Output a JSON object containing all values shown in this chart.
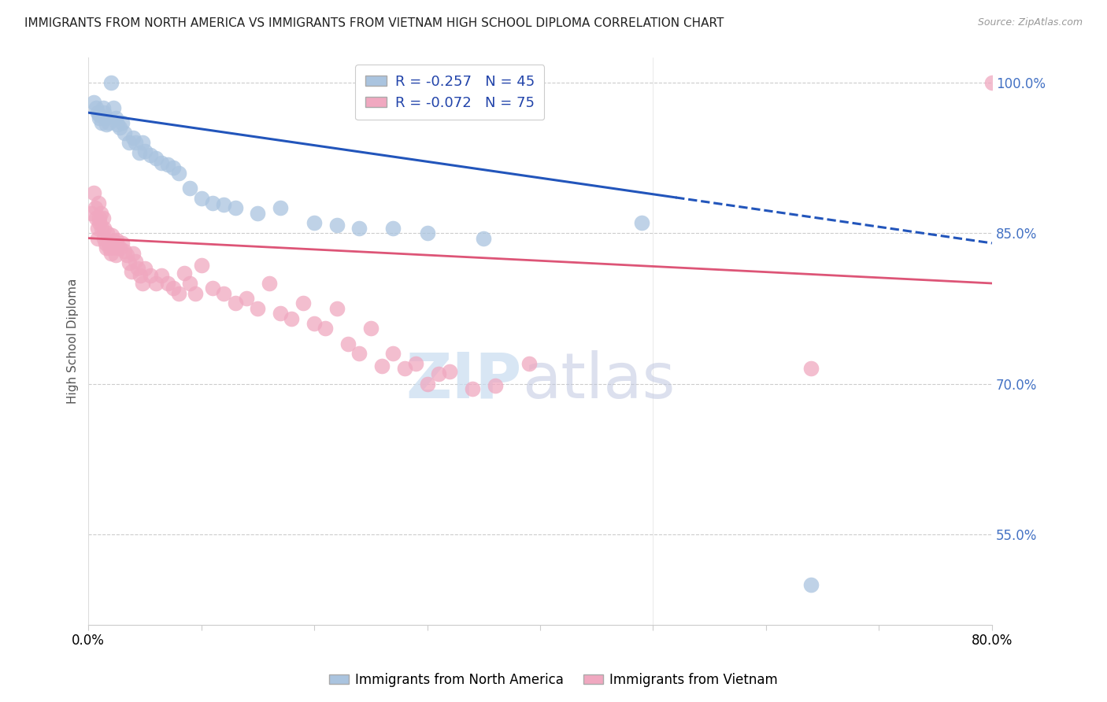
{
  "title": "IMMIGRANTS FROM NORTH AMERICA VS IMMIGRANTS FROM VIETNAM HIGH SCHOOL DIPLOMA CORRELATION CHART",
  "source": "Source: ZipAtlas.com",
  "ylabel": "High School Diploma",
  "legend_label_blue": "Immigrants from North America",
  "legend_label_pink": "Immigrants from Vietnam",
  "R_blue": -0.257,
  "N_blue": 45,
  "R_pink": -0.072,
  "N_pink": 75,
  "xmin": 0.0,
  "xmax": 0.8,
  "ymin": 0.46,
  "ymax": 1.025,
  "yticks": [
    0.55,
    0.7,
    0.85,
    1.0
  ],
  "ytick_labels": [
    "55.0%",
    "70.0%",
    "85.0%",
    "100.0%"
  ],
  "xticks": [
    0.0,
    0.1,
    0.2,
    0.3,
    0.4,
    0.5,
    0.6,
    0.7,
    0.8
  ],
  "xtick_labels": [
    "0.0%",
    "",
    "",
    "",
    "",
    "",
    "",
    "",
    "80.0%"
  ],
  "watermark_zip": "ZIP",
  "watermark_atlas": "atlas",
  "blue_color": "#aac4df",
  "pink_color": "#f0a8c0",
  "blue_line_color": "#2255bb",
  "pink_line_color": "#dd5577",
  "blue_scatter": {
    "x": [
      0.005,
      0.007,
      0.008,
      0.01,
      0.01,
      0.012,
      0.013,
      0.014,
      0.015,
      0.016,
      0.018,
      0.02,
      0.022,
      0.024,
      0.026,
      0.028,
      0.03,
      0.032,
      0.036,
      0.04,
      0.042,
      0.045,
      0.048,
      0.05,
      0.055,
      0.06,
      0.065,
      0.07,
      0.075,
      0.08,
      0.09,
      0.1,
      0.11,
      0.12,
      0.13,
      0.15,
      0.17,
      0.2,
      0.22,
      0.24,
      0.27,
      0.3,
      0.35,
      0.49,
      0.64
    ],
    "y": [
      0.98,
      0.975,
      0.97,
      0.968,
      0.965,
      0.96,
      0.975,
      0.97,
      0.965,
      0.958,
      0.96,
      1.0,
      0.975,
      0.965,
      0.958,
      0.955,
      0.96,
      0.95,
      0.94,
      0.945,
      0.94,
      0.93,
      0.94,
      0.932,
      0.928,
      0.925,
      0.92,
      0.918,
      0.915,
      0.91,
      0.895,
      0.885,
      0.88,
      0.878,
      0.875,
      0.87,
      0.875,
      0.86,
      0.858,
      0.855,
      0.855,
      0.85,
      0.845,
      0.86,
      0.5
    ]
  },
  "pink_scatter": {
    "x": [
      0.003,
      0.005,
      0.006,
      0.007,
      0.008,
      0.008,
      0.009,
      0.01,
      0.01,
      0.011,
      0.012,
      0.013,
      0.014,
      0.014,
      0.015,
      0.016,
      0.017,
      0.018,
      0.019,
      0.02,
      0.021,
      0.022,
      0.023,
      0.024,
      0.025,
      0.026,
      0.028,
      0.03,
      0.032,
      0.034,
      0.036,
      0.038,
      0.04,
      0.042,
      0.044,
      0.046,
      0.048,
      0.05,
      0.055,
      0.06,
      0.065,
      0.07,
      0.075,
      0.08,
      0.085,
      0.09,
      0.095,
      0.1,
      0.11,
      0.12,
      0.13,
      0.14,
      0.15,
      0.16,
      0.17,
      0.18,
      0.19,
      0.2,
      0.21,
      0.22,
      0.23,
      0.24,
      0.25,
      0.26,
      0.27,
      0.28,
      0.29,
      0.3,
      0.31,
      0.32,
      0.34,
      0.36,
      0.39,
      0.64,
      0.8
    ],
    "y": [
      0.87,
      0.89,
      0.875,
      0.865,
      0.855,
      0.845,
      0.88,
      0.865,
      0.86,
      0.87,
      0.855,
      0.865,
      0.855,
      0.845,
      0.84,
      0.835,
      0.85,
      0.84,
      0.835,
      0.83,
      0.848,
      0.842,
      0.835,
      0.828,
      0.843,
      0.836,
      0.835,
      0.84,
      0.832,
      0.828,
      0.82,
      0.812,
      0.83,
      0.822,
      0.815,
      0.808,
      0.8,
      0.815,
      0.808,
      0.8,
      0.808,
      0.8,
      0.795,
      0.79,
      0.81,
      0.8,
      0.79,
      0.818,
      0.795,
      0.79,
      0.78,
      0.785,
      0.775,
      0.8,
      0.77,
      0.765,
      0.78,
      0.76,
      0.755,
      0.775,
      0.74,
      0.73,
      0.755,
      0.718,
      0.73,
      0.715,
      0.72,
      0.7,
      0.71,
      0.712,
      0.695,
      0.698,
      0.72,
      0.715,
      1.0
    ]
  },
  "blue_line": {
    "x0": 0.0,
    "x1": 0.8,
    "y0": 0.97,
    "y1": 0.84,
    "split": 0.52
  },
  "pink_line": {
    "x0": 0.0,
    "x1": 0.8,
    "y0": 0.845,
    "y1": 0.8
  }
}
